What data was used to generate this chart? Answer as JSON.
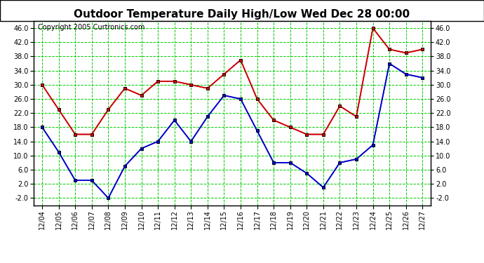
{
  "title": "Outdoor Temperature Daily High/Low Wed Dec 28 00:00",
  "copyright": "Copyright 2005 Curtronics.com",
  "dates": [
    "12/04",
    "12/05",
    "12/06",
    "12/07",
    "12/08",
    "12/09",
    "12/10",
    "12/11",
    "12/12",
    "12/13",
    "12/14",
    "12/15",
    "12/16",
    "12/17",
    "12/18",
    "12/19",
    "12/20",
    "12/21",
    "12/22",
    "12/23",
    "12/24",
    "12/25",
    "12/26",
    "12/27"
  ],
  "high_temps": [
    30,
    23,
    16,
    16,
    23,
    29,
    27,
    31,
    31,
    30,
    29,
    33,
    37,
    26,
    20,
    18,
    16,
    16,
    24,
    21,
    46,
    40,
    39,
    40
  ],
  "low_temps": [
    18,
    11,
    3,
    3,
    -2,
    7,
    12,
    14,
    20,
    14,
    21,
    27,
    26,
    17,
    8,
    8,
    5,
    1,
    8,
    9,
    13,
    36,
    33,
    32
  ],
  "high_color": "#cc0000",
  "low_color": "#0000cc",
  "marker": "s",
  "marker_size": 3,
  "bg_color": "#ffffff",
  "plot_bg_color": "#ffffff",
  "grid_color": "#00cc00",
  "ylim": [
    -4,
    48
  ],
  "yticks": [
    -2,
    2,
    6,
    10,
    14,
    18,
    22,
    26,
    30,
    34,
    38,
    42,
    46
  ],
  "title_fontsize": 11,
  "copyright_fontsize": 7
}
